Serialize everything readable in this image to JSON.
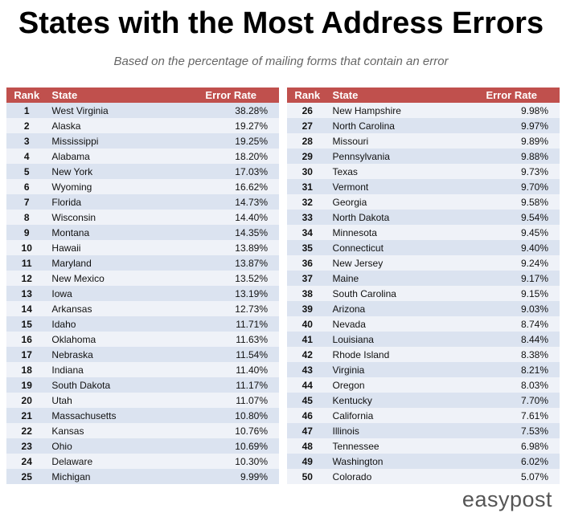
{
  "header": {
    "title": "States with the Most Address Errors",
    "subtitle": "Based on the percentage of mailing forms that contain an error"
  },
  "columns": {
    "rank": "Rank",
    "state": "State",
    "rate": "Error Rate"
  },
  "rows": [
    {
      "rank": "1",
      "state": "West Virginia",
      "rate": "38.28%"
    },
    {
      "rank": "2",
      "state": "Alaska",
      "rate": "19.27%"
    },
    {
      "rank": "3",
      "state": "Mississippi",
      "rate": "19.25%"
    },
    {
      "rank": "4",
      "state": "Alabama",
      "rate": "18.20%"
    },
    {
      "rank": "5",
      "state": "New York",
      "rate": "17.03%"
    },
    {
      "rank": "6",
      "state": "Wyoming",
      "rate": "16.62%"
    },
    {
      "rank": "7",
      "state": "Florida",
      "rate": "14.73%"
    },
    {
      "rank": "8",
      "state": "Wisconsin",
      "rate": "14.40%"
    },
    {
      "rank": "9",
      "state": "Montana",
      "rate": "14.35%"
    },
    {
      "rank": "10",
      "state": "Hawaii",
      "rate": "13.89%"
    },
    {
      "rank": "11",
      "state": "Maryland",
      "rate": "13.87%"
    },
    {
      "rank": "12",
      "state": "New Mexico",
      "rate": "13.52%"
    },
    {
      "rank": "13",
      "state": "Iowa",
      "rate": "13.19%"
    },
    {
      "rank": "14",
      "state": "Arkansas",
      "rate": "12.73%"
    },
    {
      "rank": "15",
      "state": "Idaho",
      "rate": "11.71%"
    },
    {
      "rank": "16",
      "state": "Oklahoma",
      "rate": "11.63%"
    },
    {
      "rank": "17",
      "state": "Nebraska",
      "rate": "11.54%"
    },
    {
      "rank": "18",
      "state": "Indiana",
      "rate": "11.40%"
    },
    {
      "rank": "19",
      "state": "South Dakota",
      "rate": "11.17%"
    },
    {
      "rank": "20",
      "state": "Utah",
      "rate": "11.07%"
    },
    {
      "rank": "21",
      "state": "Massachusetts",
      "rate": "10.80%"
    },
    {
      "rank": "22",
      "state": "Kansas",
      "rate": "10.76%"
    },
    {
      "rank": "23",
      "state": "Ohio",
      "rate": "10.69%"
    },
    {
      "rank": "24",
      "state": "Delaware",
      "rate": "10.30%"
    },
    {
      "rank": "25",
      "state": "Michigan",
      "rate": "9.99%"
    },
    {
      "rank": "26",
      "state": "New Hampshire",
      "rate": "9.98%"
    },
    {
      "rank": "27",
      "state": "North Carolina",
      "rate": "9.97%"
    },
    {
      "rank": "28",
      "state": "Missouri",
      "rate": "9.89%"
    },
    {
      "rank": "29",
      "state": "Pennsylvania",
      "rate": "9.88%"
    },
    {
      "rank": "30",
      "state": "Texas",
      "rate": "9.73%"
    },
    {
      "rank": "31",
      "state": "Vermont",
      "rate": "9.70%"
    },
    {
      "rank": "32",
      "state": "Georgia",
      "rate": "9.58%"
    },
    {
      "rank": "33",
      "state": "North Dakota",
      "rate": "9.54%"
    },
    {
      "rank": "34",
      "state": "Minnesota",
      "rate": "9.45%"
    },
    {
      "rank": "35",
      "state": "Connecticut",
      "rate": "9.40%"
    },
    {
      "rank": "36",
      "state": "New Jersey",
      "rate": "9.24%"
    },
    {
      "rank": "37",
      "state": "Maine",
      "rate": "9.17%"
    },
    {
      "rank": "38",
      "state": "South Carolina",
      "rate": "9.15%"
    },
    {
      "rank": "39",
      "state": "Arizona",
      "rate": "9.03%"
    },
    {
      "rank": "40",
      "state": "Nevada",
      "rate": "8.74%"
    },
    {
      "rank": "41",
      "state": "Louisiana",
      "rate": "8.44%"
    },
    {
      "rank": "42",
      "state": "Rhode Island",
      "rate": "8.38%"
    },
    {
      "rank": "43",
      "state": "Virginia",
      "rate": "8.21%"
    },
    {
      "rank": "44",
      "state": "Oregon",
      "rate": "8.03%"
    },
    {
      "rank": "45",
      "state": "Kentucky",
      "rate": "7.70%"
    },
    {
      "rank": "46",
      "state": "California",
      "rate": "7.61%"
    },
    {
      "rank": "47",
      "state": "Illinois",
      "rate": "7.53%"
    },
    {
      "rank": "48",
      "state": "Tennessee",
      "rate": "6.98%"
    },
    {
      "rank": "49",
      "state": "Washington",
      "rate": "6.02%"
    },
    {
      "rank": "50",
      "state": "Colorado",
      "rate": "5.07%"
    }
  ],
  "footer": {
    "logo": "easypost"
  },
  "colors": {
    "header_bg": "#c0504d",
    "row_odd": "#dbe3f0",
    "row_even": "#eff2f8"
  }
}
